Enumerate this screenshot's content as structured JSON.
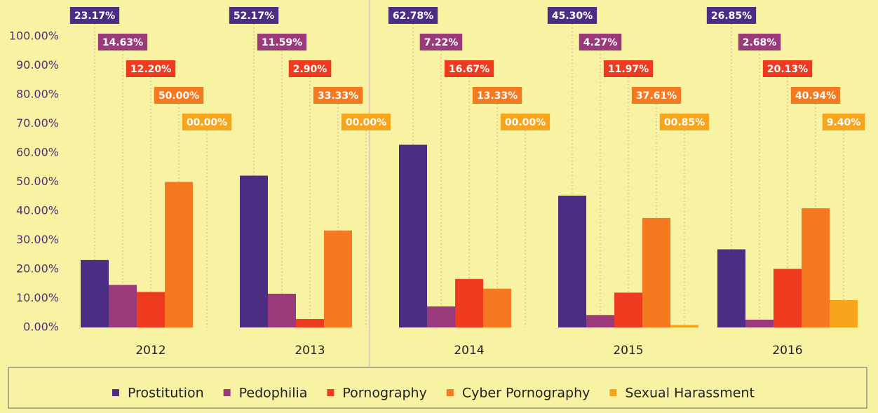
{
  "chart_data": {
    "type": "bar",
    "categories": [
      "2012",
      "2013",
      "2014",
      "2015",
      "2016"
    ],
    "series": [
      {
        "name": "Prostitution",
        "color": "#4b2d84",
        "values": [
          23.17,
          52.17,
          62.78,
          45.3,
          26.85
        ],
        "value_labels": [
          "23.17%",
          "52.17%",
          "62.78%",
          "45.30%",
          "26.85%"
        ]
      },
      {
        "name": "Pedophilia",
        "color": "#9b3a7a",
        "values": [
          14.63,
          11.59,
          7.22,
          4.27,
          2.68
        ],
        "value_labels": [
          "14.63%",
          "11.59%",
          "7.22%",
          "4.27%",
          "2.68%"
        ]
      },
      {
        "name": "Pornography",
        "color": "#ee3b1f",
        "values": [
          12.2,
          2.9,
          16.67,
          11.97,
          20.13
        ],
        "value_labels": [
          "12.20%",
          "2.90%",
          "16.67%",
          "11.97%",
          "20.13%"
        ]
      },
      {
        "name": "Cyber Pornography",
        "color": "#f47920",
        "values": [
          50.0,
          33.33,
          13.33,
          37.61,
          40.94
        ],
        "value_labels": [
          "50.00%",
          "33.33%",
          "13.33%",
          "37.61%",
          "40.94%"
        ]
      },
      {
        "name": "Sexual Harassment",
        "color": "#f8a51b",
        "values": [
          0,
          0,
          0,
          0.85,
          9.4
        ],
        "value_labels": [
          "00.00%",
          "00.00%",
          "00.00%",
          "00.85%",
          "9.40%"
        ]
      }
    ],
    "ylim": [
      0,
      100
    ],
    "yticks": [
      {
        "value": 0,
        "label": "0.00%"
      },
      {
        "value": 10,
        "label": "10.00%"
      },
      {
        "value": 20,
        "label": "20.00%"
      },
      {
        "value": 30,
        "label": "30.00%"
      },
      {
        "value": 40,
        "label": "40.00%"
      },
      {
        "value": 50,
        "label": "50.00%"
      },
      {
        "value": 60,
        "label": "60.00%"
      },
      {
        "value": 70,
        "label": "70.00%"
      },
      {
        "value": 80,
        "label": "80.00%"
      },
      {
        "value": 90,
        "label": "90.00%"
      },
      {
        "value": 100,
        "label": "100.00%"
      }
    ],
    "grid": false,
    "legend": "bottom"
  }
}
